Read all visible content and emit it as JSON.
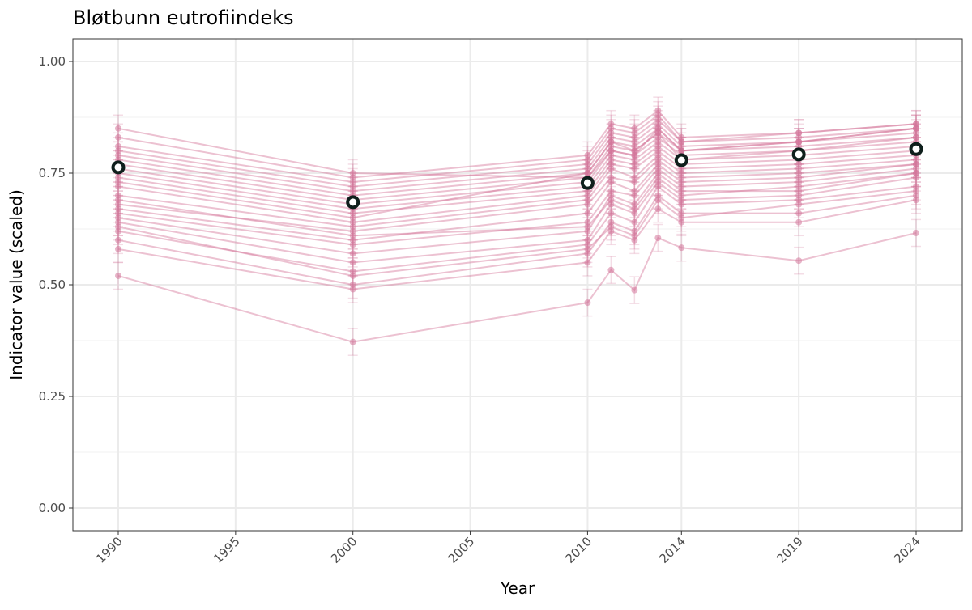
{
  "chart_data": {
    "type": "line",
    "title": "Bløtbunn eutrofiindeks",
    "xlabel": "Year",
    "ylabel": "Indicator value (scaled)",
    "xlim": [
      1988,
      2026
    ],
    "ylim": [
      -0.05,
      1.05
    ],
    "x_ticks": [
      1990,
      1995,
      2000,
      2005,
      2010,
      2014,
      2019,
      2024
    ],
    "x_tick_labels": [
      "1990",
      "1995",
      "2000",
      "2005",
      "2010",
      "2014",
      "2019",
      "2024"
    ],
    "y_ticks": [
      0,
      0.25,
      0.5,
      0.75,
      1.0
    ],
    "y_tick_labels": [
      "0.00",
      "0.25",
      "0.50",
      "0.75",
      "1.00"
    ],
    "grid": true,
    "colors": {
      "series": "#d4769a",
      "mean_fill": "#ffffff",
      "mean_stroke": "#0f1f1c"
    },
    "years": [
      1990,
      2000,
      2010,
      2011,
      2012,
      2013,
      2014,
      2019,
      2024
    ],
    "error_halfwidth": 0.03,
    "series": [
      {
        "name": "s1",
        "values": [
          0.52,
          0.372,
          0.46,
          0.533,
          0.488,
          0.605,
          0.583,
          0.554,
          0.616
        ]
      },
      {
        "name": "s2",
        "values": [
          0.58,
          0.49,
          0.55,
          0.62,
          0.6,
          0.67,
          0.64,
          0.64,
          0.69
        ]
      },
      {
        "name": "s3",
        "values": [
          0.6,
          0.5,
          0.57,
          0.64,
          0.62,
          0.7,
          0.66,
          0.66,
          0.7
        ]
      },
      {
        "name": "s4",
        "values": [
          0.62,
          0.53,
          0.59,
          0.66,
          0.64,
          0.72,
          0.68,
          0.69,
          0.72
        ]
      },
      {
        "name": "s5",
        "values": [
          0.64,
          0.55,
          0.6,
          0.68,
          0.66,
          0.73,
          0.69,
          0.7,
          0.74
        ]
      },
      {
        "name": "s6",
        "values": [
          0.65,
          0.57,
          0.62,
          0.7,
          0.68,
          0.75,
          0.71,
          0.71,
          0.75
        ]
      },
      {
        "name": "s7",
        "values": [
          0.66,
          0.59,
          0.64,
          0.71,
          0.7,
          0.76,
          0.72,
          0.73,
          0.76
        ]
      },
      {
        "name": "s8",
        "values": [
          0.67,
          0.6,
          0.66,
          0.73,
          0.71,
          0.77,
          0.73,
          0.74,
          0.77
        ]
      },
      {
        "name": "s9",
        "values": [
          0.68,
          0.62,
          0.68,
          0.74,
          0.73,
          0.78,
          0.74,
          0.75,
          0.77
        ]
      },
      {
        "name": "s10",
        "values": [
          0.7,
          0.63,
          0.69,
          0.76,
          0.74,
          0.79,
          0.75,
          0.76,
          0.78
        ]
      },
      {
        "name": "s11",
        "values": [
          0.72,
          0.64,
          0.7,
          0.77,
          0.76,
          0.8,
          0.76,
          0.77,
          0.79
        ]
      },
      {
        "name": "s12",
        "values": [
          0.74,
          0.66,
          0.71,
          0.78,
          0.77,
          0.81,
          0.77,
          0.78,
          0.8
        ]
      },
      {
        "name": "s13",
        "values": [
          0.75,
          0.67,
          0.72,
          0.79,
          0.78,
          0.82,
          0.78,
          0.79,
          0.81
        ]
      },
      {
        "name": "s14",
        "values": [
          0.76,
          0.68,
          0.73,
          0.8,
          0.79,
          0.83,
          0.79,
          0.8,
          0.82
        ]
      },
      {
        "name": "s15",
        "values": [
          0.77,
          0.69,
          0.74,
          0.81,
          0.8,
          0.84,
          0.8,
          0.81,
          0.83
        ]
      },
      {
        "name": "s16",
        "values": [
          0.78,
          0.7,
          0.75,
          0.82,
          0.81,
          0.85,
          0.8,
          0.82,
          0.84
        ]
      },
      {
        "name": "s17",
        "values": [
          0.79,
          0.71,
          0.76,
          0.83,
          0.82,
          0.86,
          0.81,
          0.82,
          0.85
        ]
      },
      {
        "name": "s18",
        "values": [
          0.8,
          0.72,
          0.77,
          0.84,
          0.83,
          0.87,
          0.82,
          0.83,
          0.85
        ]
      },
      {
        "name": "s19",
        "values": [
          0.81,
          0.73,
          0.78,
          0.85,
          0.84,
          0.88,
          0.82,
          0.84,
          0.86
        ]
      },
      {
        "name": "s20",
        "values": [
          0.83,
          0.74,
          0.79,
          0.86,
          0.85,
          0.89,
          0.83,
          0.84,
          0.86
        ]
      },
      {
        "name": "s21",
        "values": [
          0.85,
          0.75,
          0.74,
          0.8,
          0.79,
          0.85,
          0.8,
          0.82,
          0.85
        ]
      },
      {
        "name": "s22",
        "values": [
          0.69,
          0.61,
          0.63,
          0.69,
          0.67,
          0.74,
          0.7,
          0.72,
          0.75
        ]
      },
      {
        "name": "s23",
        "values": [
          0.63,
          0.52,
          0.58,
          0.63,
          0.61,
          0.69,
          0.65,
          0.68,
          0.71
        ]
      },
      {
        "name": "s24",
        "values": [
          0.73,
          0.65,
          0.75,
          0.82,
          0.8,
          0.84,
          0.78,
          0.8,
          0.83
        ]
      }
    ],
    "mean": {
      "years": [
        1990,
        2000,
        2010,
        2014,
        2019,
        2024
      ],
      "values": [
        0.763,
        0.685,
        0.728,
        0.779,
        0.792,
        0.804
      ]
    }
  }
}
